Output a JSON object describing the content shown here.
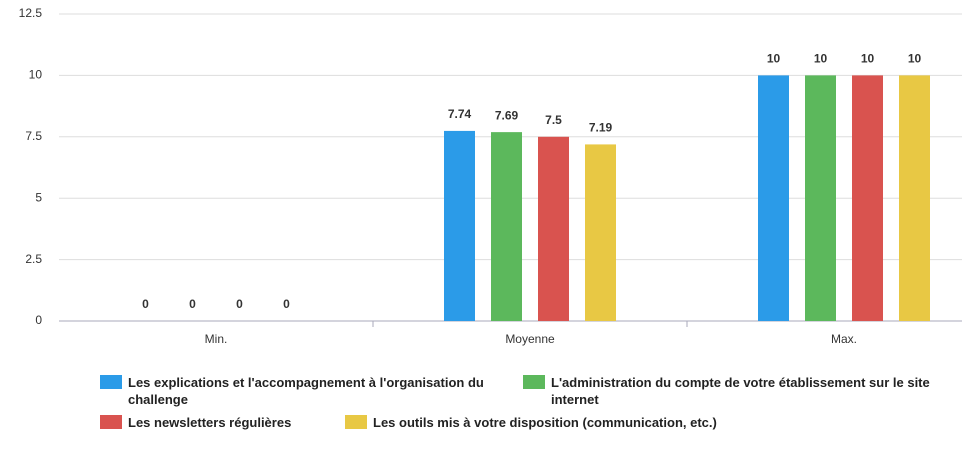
{
  "chart_data": {
    "type": "bar",
    "categories": [
      "Min.",
      "Moyenne",
      "Max."
    ],
    "series": [
      {
        "name": "Les explications et l'accompagnement à l'organisation du challenge",
        "color": "#2b9be8",
        "values": [
          0,
          7.74,
          10
        ]
      },
      {
        "name": "L'administration du compte de votre établissement sur le site internet",
        "color": "#5cb85c",
        "values": [
          0,
          7.69,
          10
        ]
      },
      {
        "name": "Les newsletters régulières",
        "color": "#d9534f",
        "values": [
          0,
          7.5,
          10
        ]
      },
      {
        "name": "Les outils mis à votre disposition (communication, etc.)",
        "color": "#e8c844",
        "values": [
          0,
          7.19,
          10
        ]
      }
    ],
    "ylim": [
      0,
      12.5
    ],
    "yticks": [
      0,
      2.5,
      5,
      7.5,
      10,
      12.5
    ],
    "grid": true,
    "legend": "bottom"
  }
}
